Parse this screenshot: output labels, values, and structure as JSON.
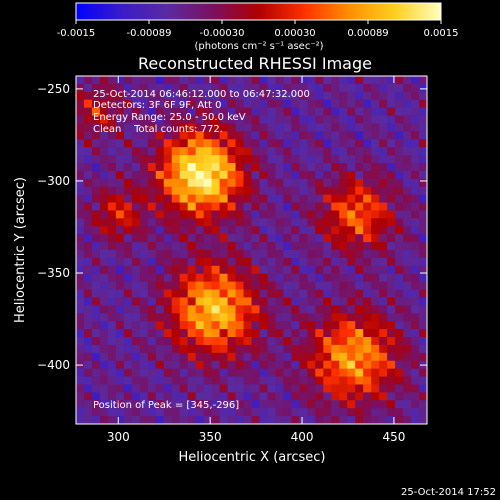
{
  "colorbar": {
    "ticks": [
      "-0.0015",
      "-0.00089",
      "-0.00030",
      "0.00030",
      "0.00089",
      "0.0015"
    ],
    "units": "(photons cm⁻² s⁻¹ asec⁻²)",
    "range": [
      -0.0015,
      0.0015
    ],
    "colormap": [
      "#0000ff",
      "#3a1cc8",
      "#5a2aa0",
      "#7a1060",
      "#b00000",
      "#ff3000",
      "#ff9000",
      "#ffd020",
      "#ffffc0"
    ]
  },
  "chart_data": {
    "type": "heatmap",
    "title": "Reconstructed RHESSI Image",
    "xlabel": "Heliocentric X (arcsec)",
    "ylabel": "Heliocentric Y (arcsec)",
    "xlim": [
      277,
      468
    ],
    "ylim": [
      -432,
      -243
    ],
    "xticks": [
      {
        "v": 300,
        "label": "300"
      },
      {
        "v": 350,
        "label": "350"
      },
      {
        "v": 400,
        "label": "400"
      },
      {
        "v": 450,
        "label": "450"
      }
    ],
    "yticks": [
      {
        "v": -250,
        "label": "−250"
      },
      {
        "v": -300,
        "label": "−300"
      },
      {
        "v": -350,
        "label": "−350"
      },
      {
        "v": -400,
        "label": "−400"
      }
    ],
    "sources": [
      {
        "x": 345,
        "y": -296,
        "sigma": 16,
        "amp": 1.0
      },
      {
        "x": 352,
        "y": -370,
        "sigma": 17,
        "amp": 0.8
      },
      {
        "x": 428,
        "y": -396,
        "sigma": 17,
        "amp": 0.7
      },
      {
        "x": 430,
        "y": -318,
        "sigma": 14,
        "amp": 0.55
      },
      {
        "x": 300,
        "y": -318,
        "sigma": 10,
        "amp": 0.4
      },
      {
        "x": 288,
        "y": -262,
        "sigma": 10,
        "amp": 0.35
      }
    ],
    "annotations": [
      "25-Oct-2014 06:46:12.000 to 06:47:32.000",
      "Detectors: 3F 6F 9F, Att 0",
      "Energy Range: 25.0 - 50.0 keV",
      "Clean    Total counts: 772."
    ],
    "peak_label": "Position of Peak = [345,-296]"
  },
  "footer": {
    "timestamp": "25-Oct-2014 17:52"
  }
}
